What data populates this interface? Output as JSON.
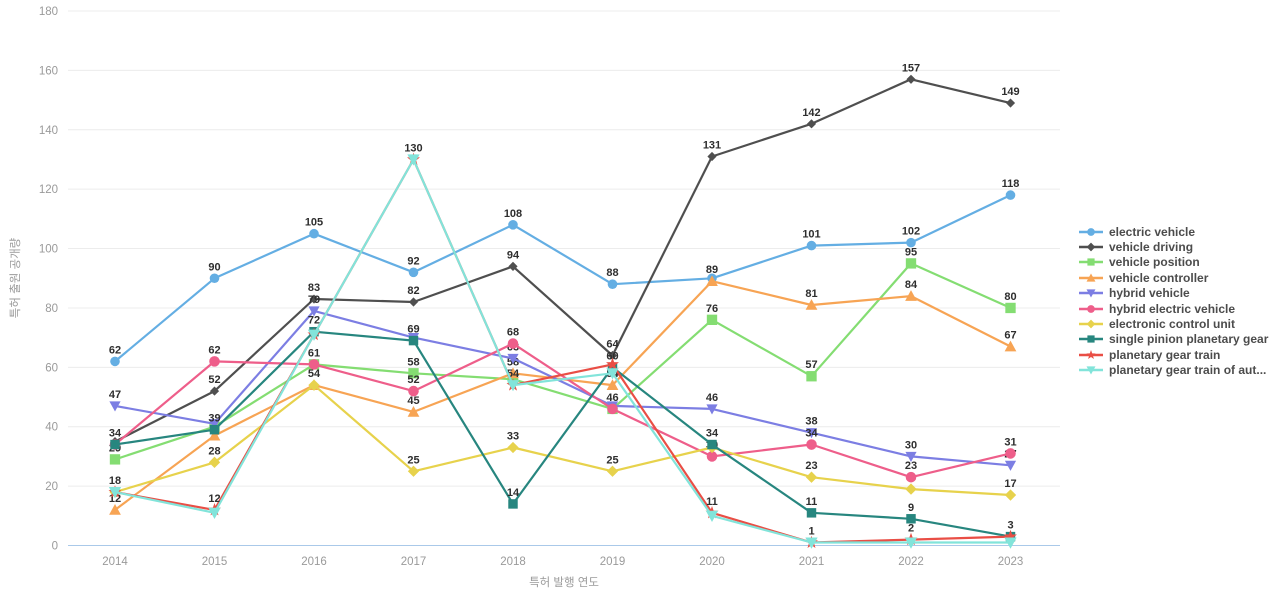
{
  "chart_data": {
    "type": "line",
    "title": "",
    "xlabel": "특허 발행 연도",
    "ylabel": "특허 출원 공개량",
    "x": [
      "2014",
      "2015",
      "2016",
      "2017",
      "2018",
      "2019",
      "2020",
      "2021",
      "2022",
      "2023"
    ],
    "ylim": [
      0,
      180
    ],
    "ytick_step": 20,
    "grid": "horizontal",
    "legend_position": "right",
    "series": [
      {
        "name": "electric vehicle",
        "slug": "electric-vehicle",
        "color": "#64aee3",
        "marker": "circle",
        "msize": 1.0,
        "values": [
          62,
          90,
          105,
          92,
          108,
          88,
          90,
          101,
          102,
          118
        ],
        "label_shown": [
          1,
          1,
          1,
          1,
          1,
          1,
          0,
          1,
          1,
          1
        ]
      },
      {
        "name": "vehicle driving",
        "slug": "vehicle-driving",
        "color": "#4f4f4f",
        "marker": "diamond",
        "msize": 0.85,
        "values": [
          35,
          52,
          83,
          82,
          94,
          64,
          131,
          142,
          157,
          149
        ],
        "label_shown": [
          0,
          1,
          1,
          1,
          1,
          1,
          1,
          1,
          1,
          1
        ]
      },
      {
        "name": "vehicle position",
        "slug": "vehicle-position",
        "color": "#84dd72",
        "marker": "square",
        "msize": 1.15,
        "values": [
          29,
          40,
          61,
          58,
          56,
          46,
          76,
          57,
          95,
          80
        ],
        "label_shown": [
          1,
          0,
          0,
          1,
          0,
          1,
          1,
          1,
          1,
          1
        ]
      },
      {
        "name": "vehicle controller",
        "slug": "vehicle-controller",
        "color": "#f7a454",
        "marker": "triangle-up",
        "msize": 1.05,
        "values": [
          12,
          37,
          54,
          45,
          58,
          54,
          89,
          81,
          84,
          67
        ],
        "label_shown": [
          1,
          0,
          0,
          1,
          1,
          1,
          1,
          1,
          1,
          1
        ]
      },
      {
        "name": "hybrid vehicle",
        "slug": "hybrid-vehicle",
        "color": "#7c7ee3",
        "marker": "triangle-down",
        "msize": 1.0,
        "values": [
          47,
          41,
          79,
          70,
          63,
          47,
          46,
          38,
          30,
          27
        ],
        "label_shown": [
          1,
          0,
          1,
          0,
          1,
          0,
          1,
          1,
          1,
          1
        ]
      },
      {
        "name": "hybrid electric vehicle",
        "slug": "hybrid-electric-vehicle",
        "color": "#ee5e8a",
        "marker": "circle",
        "msize": 1.1,
        "values": [
          34,
          62,
          61,
          52,
          68,
          46,
          30,
          34,
          23,
          31
        ],
        "label_shown": [
          1,
          1,
          1,
          1,
          1,
          0,
          1,
          1,
          1,
          1
        ]
      },
      {
        "name": "electronic control unit",
        "slug": "electronic-control-unit",
        "color": "#e7d24c",
        "marker": "diamond",
        "msize": 1.05,
        "values": [
          18,
          28,
          54,
          25,
          33,
          25,
          33,
          23,
          19,
          17
        ],
        "label_shown": [
          1,
          1,
          1,
          1,
          1,
          1,
          0,
          1,
          0,
          1
        ]
      },
      {
        "name": "single pinion planetary gear",
        "slug": "single-pinion-planetary-gear",
        "color": "#27867f",
        "marker": "square",
        "msize": 1.05,
        "values": [
          34,
          39,
          72,
          69,
          14,
          60,
          34,
          11,
          9,
          3
        ],
        "label_shown": [
          0,
          1,
          1,
          1,
          1,
          1,
          1,
          1,
          1,
          1
        ]
      },
      {
        "name": "planetary gear train",
        "slug": "planetary-gear-train",
        "color": "#e94e45",
        "marker": "star",
        "msize": 1.1,
        "values": [
          18,
          12,
          71,
          130,
          54,
          61,
          11,
          1,
          2,
          3
        ],
        "label_shown": [
          0,
          1,
          0,
          1,
          1,
          0,
          1,
          1,
          1,
          0
        ]
      },
      {
        "name": "planetary gear train of aut...",
        "slug": "planetary-gear-train-of-aut",
        "color": "#82e4da",
        "marker": "triangle-down",
        "msize": 1.1,
        "values": [
          18,
          11,
          71,
          130,
          54,
          58,
          10,
          1,
          1,
          1
        ],
        "label_shown": [
          0,
          0,
          0,
          0,
          0,
          0,
          0,
          0,
          0,
          0
        ]
      }
    ],
    "axis_colors": {
      "tick_text": "#9a9a9a",
      "gridline": "#ececec",
      "zero_line": "#aac9e9",
      "data_label": "#2e2e2e"
    }
  }
}
